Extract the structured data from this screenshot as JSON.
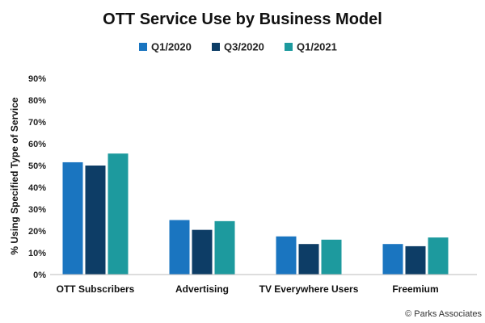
{
  "chart_data": {
    "type": "bar",
    "title": "OTT Service Use by Business Model",
    "xlabel": "",
    "ylabel": "% Using Specified Type of Service",
    "categories": [
      "OTT Subscribers",
      "Advertising",
      "TV Everywhere Users",
      "Freemium"
    ],
    "series": [
      {
        "name": "Q1/2020",
        "color": "#1a75c0",
        "values": [
          51.5,
          25.0,
          17.5,
          14.0
        ]
      },
      {
        "name": "Q3/2020",
        "color": "#0d3d66",
        "values": [
          50.0,
          20.5,
          14.0,
          13.0
        ]
      },
      {
        "name": "Q1/2021",
        "color": "#1d9a9e",
        "values": [
          55.5,
          24.5,
          16.0,
          17.0
        ]
      }
    ],
    "ylim": [
      0,
      90
    ],
    "yticks": [
      "0%",
      "10%",
      "20%",
      "30%",
      "40%",
      "50%",
      "60%",
      "70%",
      "80%",
      "90%"
    ],
    "legend_position": "top",
    "grid": false
  },
  "credit": "© Parks Associates"
}
